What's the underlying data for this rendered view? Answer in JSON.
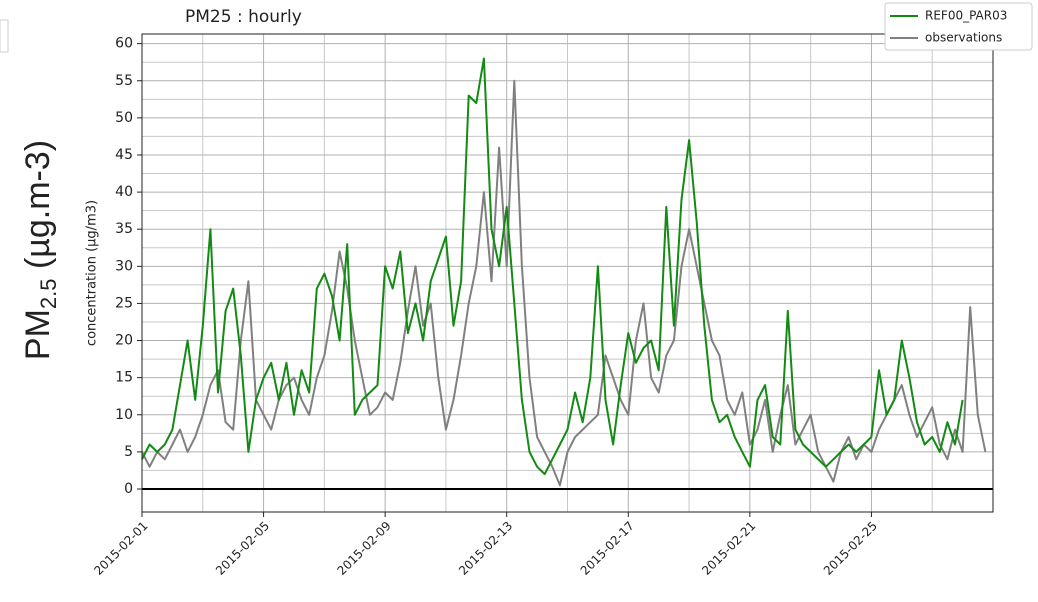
{
  "chart_data": {
    "type": "line",
    "title": "PM25 : hourly",
    "ylabel": "concentration (µg/m3)",
    "outer_label": {
      "base": "PM",
      "sub": "2.5",
      "rest": " (µg.m-3)"
    },
    "x": [
      "2015-02-01 00:00",
      "2015-02-01 06:00",
      "2015-02-01 12:00",
      "2015-02-01 18:00",
      "2015-02-02 00:00",
      "2015-02-02 06:00",
      "2015-02-02 12:00",
      "2015-02-02 18:00",
      "2015-02-03 00:00",
      "2015-02-03 06:00",
      "2015-02-03 12:00",
      "2015-02-03 18:00",
      "2015-02-04 00:00",
      "2015-02-04 06:00",
      "2015-02-04 12:00",
      "2015-02-04 18:00",
      "2015-02-05 00:00",
      "2015-02-05 06:00",
      "2015-02-05 12:00",
      "2015-02-05 18:00",
      "2015-02-06 00:00",
      "2015-02-06 06:00",
      "2015-02-06 12:00",
      "2015-02-06 18:00",
      "2015-02-07 00:00",
      "2015-02-07 06:00",
      "2015-02-07 12:00",
      "2015-02-07 18:00",
      "2015-02-08 00:00",
      "2015-02-08 06:00",
      "2015-02-08 12:00",
      "2015-02-08 18:00",
      "2015-02-09 00:00",
      "2015-02-09 06:00",
      "2015-02-09 12:00",
      "2015-02-09 18:00",
      "2015-02-10 00:00",
      "2015-02-10 06:00",
      "2015-02-10 12:00",
      "2015-02-10 18:00",
      "2015-02-11 00:00",
      "2015-02-11 06:00",
      "2015-02-11 12:00",
      "2015-02-11 18:00",
      "2015-02-12 00:00",
      "2015-02-12 06:00",
      "2015-02-12 12:00",
      "2015-02-12 18:00",
      "2015-02-13 00:00",
      "2015-02-13 06:00",
      "2015-02-13 12:00",
      "2015-02-13 18:00",
      "2015-02-14 00:00",
      "2015-02-14 06:00",
      "2015-02-14 12:00",
      "2015-02-14 18:00",
      "2015-02-15 00:00",
      "2015-02-15 06:00",
      "2015-02-15 12:00",
      "2015-02-15 18:00",
      "2015-02-16 00:00",
      "2015-02-16 06:00",
      "2015-02-16 12:00",
      "2015-02-16 18:00",
      "2015-02-17 00:00",
      "2015-02-17 06:00",
      "2015-02-17 12:00",
      "2015-02-17 18:00",
      "2015-02-18 00:00",
      "2015-02-18 06:00",
      "2015-02-18 12:00",
      "2015-02-18 18:00",
      "2015-02-19 00:00",
      "2015-02-19 06:00",
      "2015-02-19 12:00",
      "2015-02-19 18:00",
      "2015-02-20 00:00",
      "2015-02-20 06:00",
      "2015-02-20 12:00",
      "2015-02-20 18:00",
      "2015-02-21 00:00",
      "2015-02-21 06:00",
      "2015-02-21 12:00",
      "2015-02-21 18:00",
      "2015-02-22 00:00",
      "2015-02-22 06:00",
      "2015-02-22 12:00",
      "2015-02-22 18:00",
      "2015-02-23 00:00",
      "2015-02-23 06:00",
      "2015-02-23 12:00",
      "2015-02-23 18:00",
      "2015-02-24 00:00",
      "2015-02-24 06:00",
      "2015-02-24 12:00",
      "2015-02-24 18:00",
      "2015-02-25 00:00",
      "2015-02-25 06:00",
      "2015-02-25 12:00",
      "2015-02-25 18:00",
      "2015-02-26 00:00",
      "2015-02-26 06:00",
      "2015-02-26 12:00",
      "2015-02-26 18:00",
      "2015-02-27 00:00",
      "2015-02-27 06:00",
      "2015-02-27 12:00",
      "2015-02-27 18:00",
      "2015-02-28 00:00",
      "2015-02-28 06:00",
      "2015-02-28 12:00",
      "2015-02-28 18:00"
    ],
    "series": [
      {
        "name": "REF00_PAR03",
        "color": "#138a13",
        "values": [
          4,
          6,
          5,
          6,
          8,
          14,
          20,
          12,
          22,
          35,
          13,
          24,
          27,
          18,
          5,
          12,
          15,
          17,
          12,
          17,
          10,
          16,
          13,
          27,
          29,
          26,
          20,
          33,
          10,
          12,
          13,
          14,
          30,
          27,
          32,
          21,
          25,
          20,
          28,
          31,
          34,
          22,
          28,
          53,
          52,
          58,
          35,
          30,
          38,
          25,
          12,
          5,
          3,
          2,
          4,
          6,
          8,
          13,
          9,
          15,
          30,
          12,
          6,
          14,
          21,
          17,
          19,
          20,
          16,
          38,
          22,
          39,
          47,
          36,
          22,
          12,
          9,
          10,
          7,
          5,
          3,
          12,
          14,
          7,
          6,
          24,
          8,
          6,
          5,
          4,
          3,
          4,
          5,
          6,
          5,
          6,
          7,
          16,
          10,
          12,
          20,
          15,
          9,
          6,
          7,
          5,
          9,
          6,
          12,
          null,
          null,
          null
        ]
      },
      {
        "name": "observations",
        "color": "#808080",
        "values": [
          5,
          3,
          5,
          4,
          6,
          8,
          5,
          7,
          10,
          14,
          16,
          9,
          8,
          20,
          28,
          12,
          10,
          8,
          12,
          14,
          15,
          12,
          10,
          15,
          18,
          24,
          32,
          27,
          20,
          15,
          10,
          11,
          13,
          12,
          17,
          24,
          30,
          22,
          25,
          15,
          8,
          12,
          18,
          25,
          30,
          40,
          28,
          46,
          30,
          55,
          30,
          15,
          7,
          5,
          3,
          0.5,
          5,
          7,
          8,
          9,
          10,
          18,
          15,
          12,
          10,
          20,
          25,
          15,
          13,
          18,
          20,
          30,
          35,
          30,
          25,
          20,
          18,
          12,
          10,
          13,
          6,
          8,
          12,
          5,
          10,
          14,
          6,
          8,
          10,
          5,
          3,
          1,
          5,
          7,
          4,
          6,
          5,
          8,
          10,
          12,
          14,
          10,
          7,
          9,
          11,
          6,
          4,
          8,
          5,
          24.5,
          10,
          5
        ]
      }
    ],
    "xlim": [
      "2015-02-01",
      "2015-03-01"
    ],
    "xticks": [
      "2015-02-01",
      "2015-02-05",
      "2015-02-09",
      "2015-02-13",
      "2015-02-17",
      "2015-02-21",
      "2015-02-25"
    ],
    "xgrid_minor": [
      "2015-02-03",
      "2015-02-07",
      "2015-02-11",
      "2015-02-15",
      "2015-02-19",
      "2015-02-23",
      "2015-02-27"
    ],
    "ylim": [
      -3.1,
      61.3
    ],
    "yticks": [
      0,
      5,
      10,
      15,
      20,
      25,
      30,
      35,
      40,
      45,
      50,
      55,
      60
    ],
    "ygrid_minor": [
      2.5,
      7.5,
      12.5,
      17.5,
      22.5,
      27.5,
      32.5,
      37.5,
      42.5,
      47.5,
      52.5,
      57.5
    ],
    "hline": 0,
    "grid": true,
    "legend": "upper right"
  }
}
